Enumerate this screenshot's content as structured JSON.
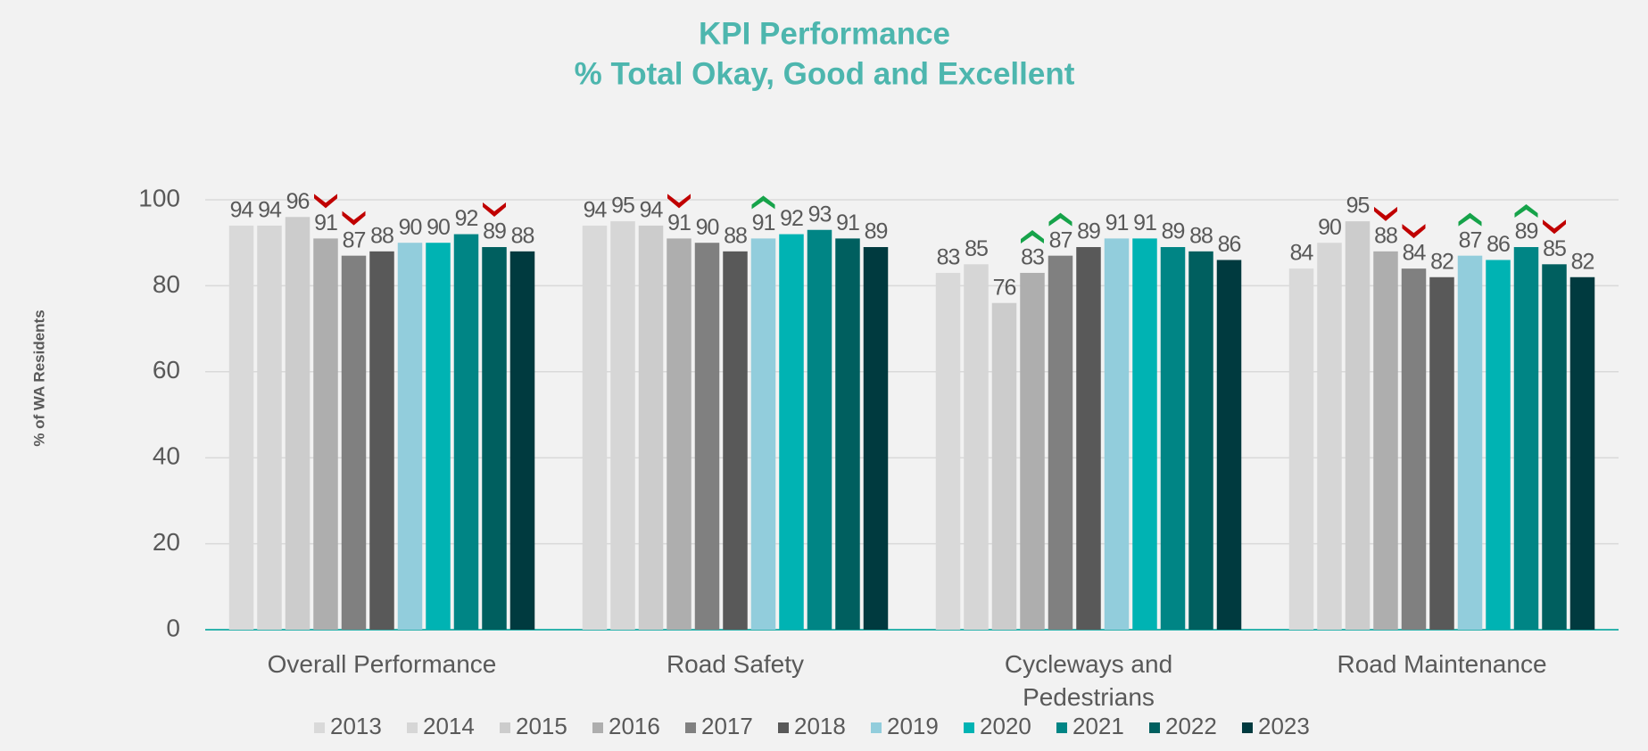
{
  "chart_data": {
    "type": "bar",
    "title": "KPI Performance",
    "subtitle": "% Total Okay, Good and Excellent",
    "y_label": "% of WA Residents",
    "categories": [
      "Overall Performance",
      "Road Safety",
      "Cycleways and Pedestrians",
      "Road Maintenance"
    ],
    "series": [
      {
        "name": "2013",
        "color": "#d9d9d9",
        "values": [
          94,
          94,
          83,
          84
        ]
      },
      {
        "name": "2014",
        "color": "#d6d6d6",
        "values": [
          94,
          95,
          85,
          90
        ]
      },
      {
        "name": "2015",
        "color": "#cccccc",
        "values": [
          96,
          94,
          76,
          95
        ]
      },
      {
        "name": "2016",
        "color": "#aeaeae",
        "values": [
          91,
          91,
          83,
          88
        ]
      },
      {
        "name": "2017",
        "color": "#808080",
        "values": [
          87,
          90,
          87,
          84
        ]
      },
      {
        "name": "2018",
        "color": "#595959",
        "values": [
          88,
          88,
          89,
          82
        ]
      },
      {
        "name": "2019",
        "color": "#92cddc",
        "values": [
          90,
          91,
          91,
          87
        ]
      },
      {
        "name": "2020",
        "color": "#00b3b3",
        "values": [
          90,
          92,
          91,
          86
        ]
      },
      {
        "name": "2021",
        "color": "#008585",
        "values": [
          92,
          93,
          89,
          89
        ]
      },
      {
        "name": "2022",
        "color": "#005f5f",
        "values": [
          89,
          91,
          88,
          85
        ]
      },
      {
        "name": "2023",
        "color": "#003a3f",
        "values": [
          88,
          89,
          86,
          82
        ]
      }
    ],
    "ylim": [
      0,
      100
    ],
    "yticks": [
      0,
      20,
      40,
      60,
      80,
      100
    ],
    "grid": true
  }
}
